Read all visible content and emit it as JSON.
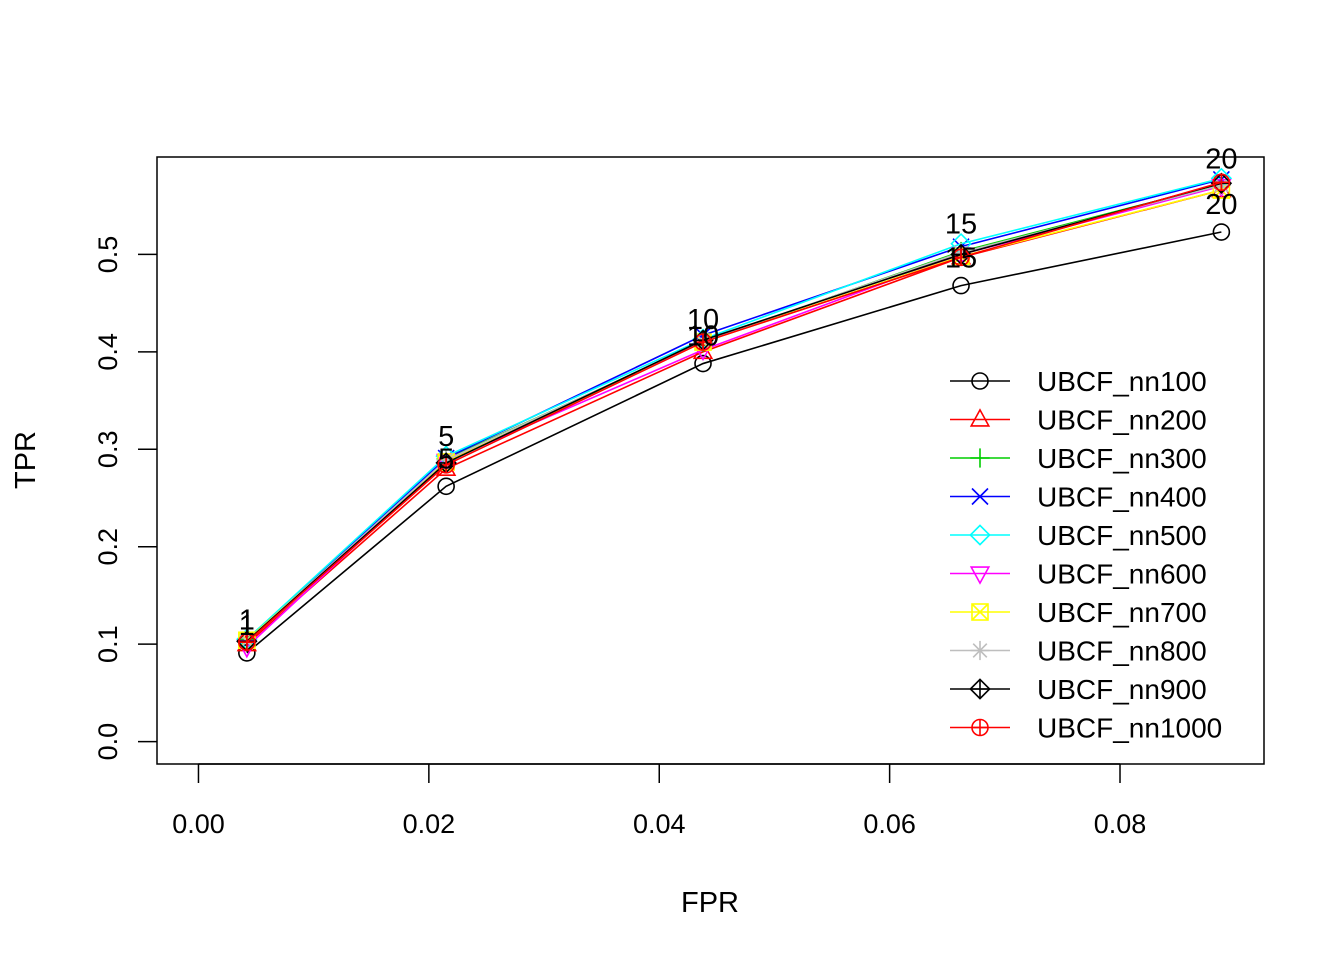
{
  "chart_data": {
    "type": "line",
    "title": "",
    "xlabel": "FPR",
    "ylabel": "TPR",
    "xlim": [
      -0.0036,
      0.0925
    ],
    "ylim": [
      -0.023,
      0.6
    ],
    "x_ticks": [
      "0.00",
      "0.02",
      "0.04",
      "0.06",
      "0.08"
    ],
    "y_ticks": [
      "0.0",
      "0.1",
      "0.2",
      "0.3",
      "0.4",
      "0.5"
    ],
    "grid": false,
    "legend_position": "bottom-right",
    "point_labels": [
      "1",
      "5",
      "10",
      "15",
      "20"
    ],
    "series": [
      {
        "name": "UBCF_nn100",
        "color": "#000000",
        "marker": "circle",
        "x": [
          0.0042,
          0.0215,
          0.0438,
          0.0662,
          0.0888
        ],
        "y": [
          0.091,
          0.262,
          0.388,
          0.468,
          0.523
        ]
      },
      {
        "name": "UBCF_nn200",
        "color": "#FF0000",
        "marker": "triangle-up",
        "x": [
          0.0042,
          0.0215,
          0.0438,
          0.0662,
          0.0888
        ],
        "y": [
          0.1,
          0.28,
          0.4,
          0.497,
          0.566
        ]
      },
      {
        "name": "UBCF_nn300",
        "color": "#00CD00",
        "marker": "plus",
        "x": [
          0.0042,
          0.0215,
          0.0438,
          0.0662,
          0.0888
        ],
        "y": [
          0.105,
          0.29,
          0.41,
          0.503,
          0.572
        ]
      },
      {
        "name": "UBCF_nn400",
        "color": "#0000FF",
        "marker": "cross",
        "x": [
          0.0042,
          0.0215,
          0.0438,
          0.0662,
          0.0888
        ],
        "y": [
          0.104,
          0.291,
          0.417,
          0.508,
          0.577
        ]
      },
      {
        "name": "UBCF_nn500",
        "color": "#00FFFF",
        "marker": "diamond",
        "x": [
          0.0042,
          0.0215,
          0.0438,
          0.0662,
          0.0888
        ],
        "y": [
          0.105,
          0.293,
          0.413,
          0.511,
          0.578
        ]
      },
      {
        "name": "UBCF_nn600",
        "color": "#FF00FF",
        "marker": "triangle-down",
        "x": [
          0.0042,
          0.0215,
          0.0438,
          0.0662,
          0.0888
        ],
        "y": [
          0.097,
          0.288,
          0.402,
          0.5,
          0.57
        ]
      },
      {
        "name": "UBCF_nn700",
        "color": "#FFFF00",
        "marker": "square-cross",
        "x": [
          0.0042,
          0.0215,
          0.0438,
          0.0662,
          0.0888
        ],
        "y": [
          0.104,
          0.287,
          0.41,
          0.498,
          0.566
        ]
      },
      {
        "name": "UBCF_nn800",
        "color": "#BEBEBE",
        "marker": "asterisk",
        "x": [
          0.0042,
          0.0215,
          0.0438,
          0.0662,
          0.0888
        ],
        "y": [
          0.103,
          0.289,
          0.411,
          0.502,
          0.571
        ]
      },
      {
        "name": "UBCF_nn900",
        "color": "#000000",
        "marker": "diamond-plus",
        "x": [
          0.0042,
          0.0215,
          0.0438,
          0.0662,
          0.0888
        ],
        "y": [
          0.103,
          0.286,
          0.412,
          0.5,
          0.573
        ]
      },
      {
        "name": "UBCF_nn1000",
        "color": "#FF0000",
        "marker": "circle-plus",
        "x": [
          0.0042,
          0.0215,
          0.0438,
          0.0662,
          0.0888
        ],
        "y": [
          0.102,
          0.284,
          0.41,
          0.497,
          0.574
        ]
      }
    ]
  }
}
